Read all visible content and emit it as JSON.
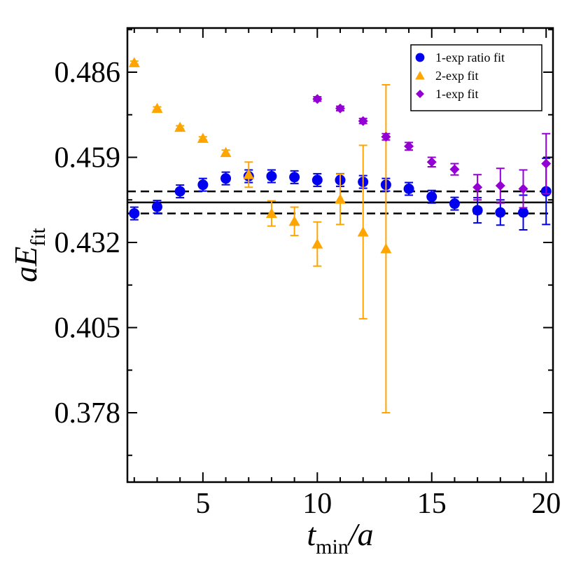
{
  "chart_data": {
    "type": "scatter",
    "xlabel_main": "t",
    "xlabel_sub": "min",
    "xlabel_tail": "/a",
    "ylabel_main": "aE",
    "ylabel_sub": "fit",
    "xlim": [
      1.7,
      20.3
    ],
    "ylim": [
      0.356,
      0.5
    ],
    "xticks": [
      5,
      10,
      15,
      20
    ],
    "xtick_labels": [
      "5",
      "10",
      "15",
      "20"
    ],
    "yticks": [
      0.378,
      0.405,
      0.432,
      0.459,
      0.486
    ],
    "ytick_labels": [
      "0.378",
      "0.405",
      "0.432",
      "0.459",
      "0.486"
    ],
    "legend_position": "top-right",
    "reference_band": {
      "center": 0.4447,
      "lower": 0.4412,
      "upper": 0.4482,
      "colors": {
        "center": "#000000",
        "bounds": "#000000"
      }
    },
    "series": [
      {
        "name": "1-exp ratio fit",
        "marker": "circle",
        "color": "#0000ee",
        "x": [
          2,
          3,
          4,
          5,
          6,
          7,
          8,
          9,
          10,
          11,
          12,
          13,
          14,
          15,
          16,
          17,
          18,
          19,
          20
        ],
        "y": [
          0.4412,
          0.4433,
          0.4482,
          0.4503,
          0.4523,
          0.453,
          0.453,
          0.4527,
          0.4518,
          0.4518,
          0.4512,
          0.4503,
          0.449,
          0.4465,
          0.4443,
          0.4422,
          0.4415,
          0.4415,
          0.4482
        ],
        "err": [
          0.002,
          0.002,
          0.002,
          0.002,
          0.002,
          0.002,
          0.002,
          0.002,
          0.002,
          0.002,
          0.002,
          0.002,
          0.002,
          0.002,
          0.002,
          0.004,
          0.004,
          0.0055,
          0.0105
        ]
      },
      {
        "name": "2-exp fit",
        "marker": "triangle",
        "color": "#ffa500",
        "x": [
          2,
          3,
          4,
          5,
          6,
          7,
          8,
          9,
          10,
          11,
          12,
          13
        ],
        "y": [
          0.489,
          0.4745,
          0.4685,
          0.465,
          0.4605,
          0.4535,
          0.4412,
          0.4387,
          0.4315,
          0.4457,
          0.4353,
          0.43
        ],
        "err": [
          0.0005,
          0.0005,
          0.0005,
          0.0005,
          0.0008,
          0.004,
          0.004,
          0.0045,
          0.007,
          0.008,
          0.0275,
          0.052
        ]
      },
      {
        "name": "1-exp fit",
        "marker": "diamond",
        "color": "#9400d3",
        "x": [
          10,
          11,
          12,
          13,
          14,
          15,
          16,
          17,
          18,
          19,
          20
        ],
        "y": [
          0.4775,
          0.4745,
          0.4705,
          0.4655,
          0.4625,
          0.4575,
          0.4552,
          0.4495,
          0.45,
          0.449,
          0.457
        ],
        "err": [
          0.0007,
          0.0007,
          0.0008,
          0.001,
          0.0012,
          0.0015,
          0.0018,
          0.004,
          0.0055,
          0.006,
          0.0095
        ]
      }
    ]
  }
}
